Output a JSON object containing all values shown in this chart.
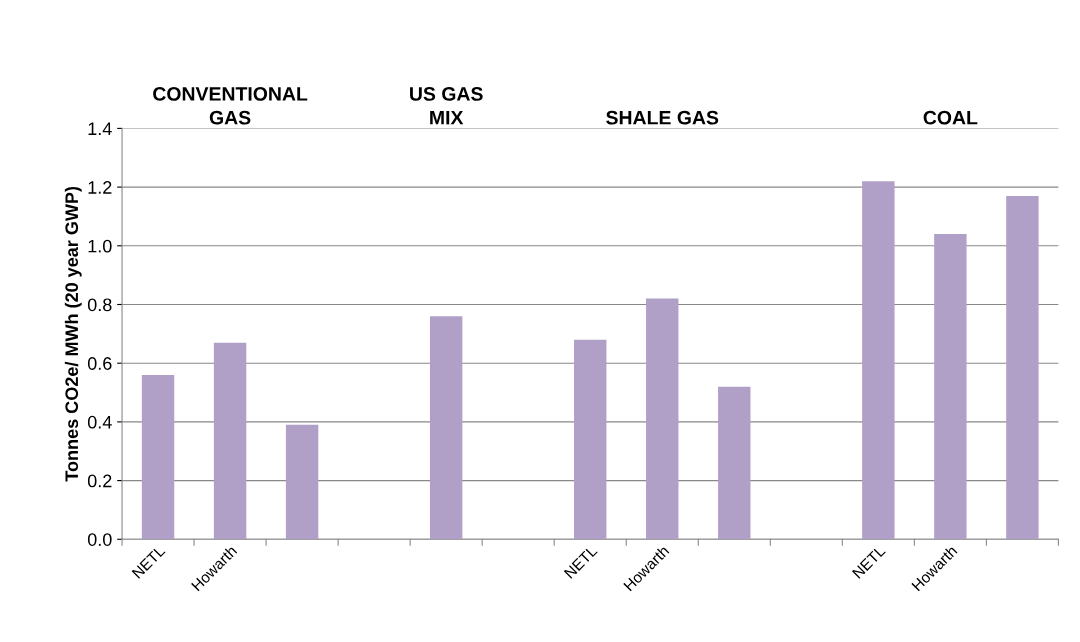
{
  "chart_data": {
    "type": "bar",
    "ylabel": "Tonnes CO2e/ MWh (20 year GWP)",
    "categories": [
      "NETL",
      "Howarth",
      null,
      null,
      null,
      null,
      "NETL",
      "Howarth",
      null,
      null,
      "NETL",
      "Howarth",
      null
    ],
    "values": [
      0.56,
      0.67,
      0.39,
      null,
      0.76,
      null,
      0.68,
      0.82,
      0.52,
      null,
      1.22,
      1.04,
      1.17
    ],
    "color": "#b0a0c8",
    "ylim": [
      0,
      1.4
    ],
    "yticks": [
      {
        "value": 0,
        "label": "0.0"
      },
      {
        "value": 0.2,
        "label": "0.2"
      },
      {
        "value": 0.4,
        "label": "0.4"
      },
      {
        "value": 0.6,
        "label": "0.6"
      },
      {
        "value": 0.8,
        "label": "0.8"
      },
      {
        "value": 1.0,
        "label": "1.0"
      },
      {
        "value": 1.2,
        "label": "1.2"
      },
      {
        "value": 1.4,
        "label": "1.4"
      }
    ],
    "grid": "y",
    "annotations": [
      "CONVENTIONAL\nGAS",
      "US GAS\nMIX",
      "SHALE GAS",
      "COAL"
    ]
  }
}
